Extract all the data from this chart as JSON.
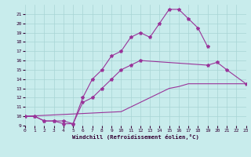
{
  "background_color": "#c8ecec",
  "grid_color": "#a8d4d4",
  "line_color": "#993399",
  "xlabel": "Windchill (Refroidissement éolien,°C)",
  "xlim": [
    0,
    23
  ],
  "ylim": [
    9,
    22
  ],
  "ytick_labels": [
    "9",
    "10",
    "11",
    "12",
    "13",
    "14",
    "15",
    "16",
    "17",
    "18",
    "19",
    "20",
    "21"
  ],
  "ytick_vals": [
    9,
    10,
    11,
    12,
    13,
    14,
    15,
    16,
    17,
    18,
    19,
    20,
    21
  ],
  "xtick_vals": [
    0,
    1,
    2,
    3,
    4,
    5,
    6,
    7,
    8,
    9,
    10,
    11,
    12,
    13,
    14,
    15,
    16,
    17,
    18,
    19,
    20,
    21,
    22,
    23
  ],
  "line1_x": [
    0,
    1,
    2,
    3,
    4,
    5,
    6,
    7,
    8,
    9,
    10,
    11,
    12,
    13,
    14,
    15,
    16,
    17,
    18,
    19
  ],
  "line1_y": [
    10,
    10,
    9.5,
    9.5,
    9.5,
    9.2,
    12,
    14,
    15,
    16.5,
    17,
    18.5,
    19,
    18.5,
    20,
    21.5,
    21.5,
    20.5,
    19.5,
    17.5
  ],
  "line2_x": [
    0,
    1,
    2,
    3,
    4,
    5,
    6,
    7,
    8,
    9,
    10,
    11,
    12,
    19,
    20,
    21,
    23
  ],
  "line2_y": [
    10,
    10,
    9.5,
    9.5,
    9.2,
    9.2,
    11.5,
    12.0,
    13.0,
    14.0,
    15.0,
    15.5,
    16.0,
    15.5,
    15.8,
    15.0,
    13.5
  ],
  "line3_x": [
    0,
    10,
    11,
    12,
    13,
    14,
    15,
    16,
    17,
    23
  ],
  "line3_y": [
    10,
    10.5,
    11.0,
    11.5,
    12.0,
    12.5,
    13.0,
    13.2,
    13.5,
    13.5
  ]
}
